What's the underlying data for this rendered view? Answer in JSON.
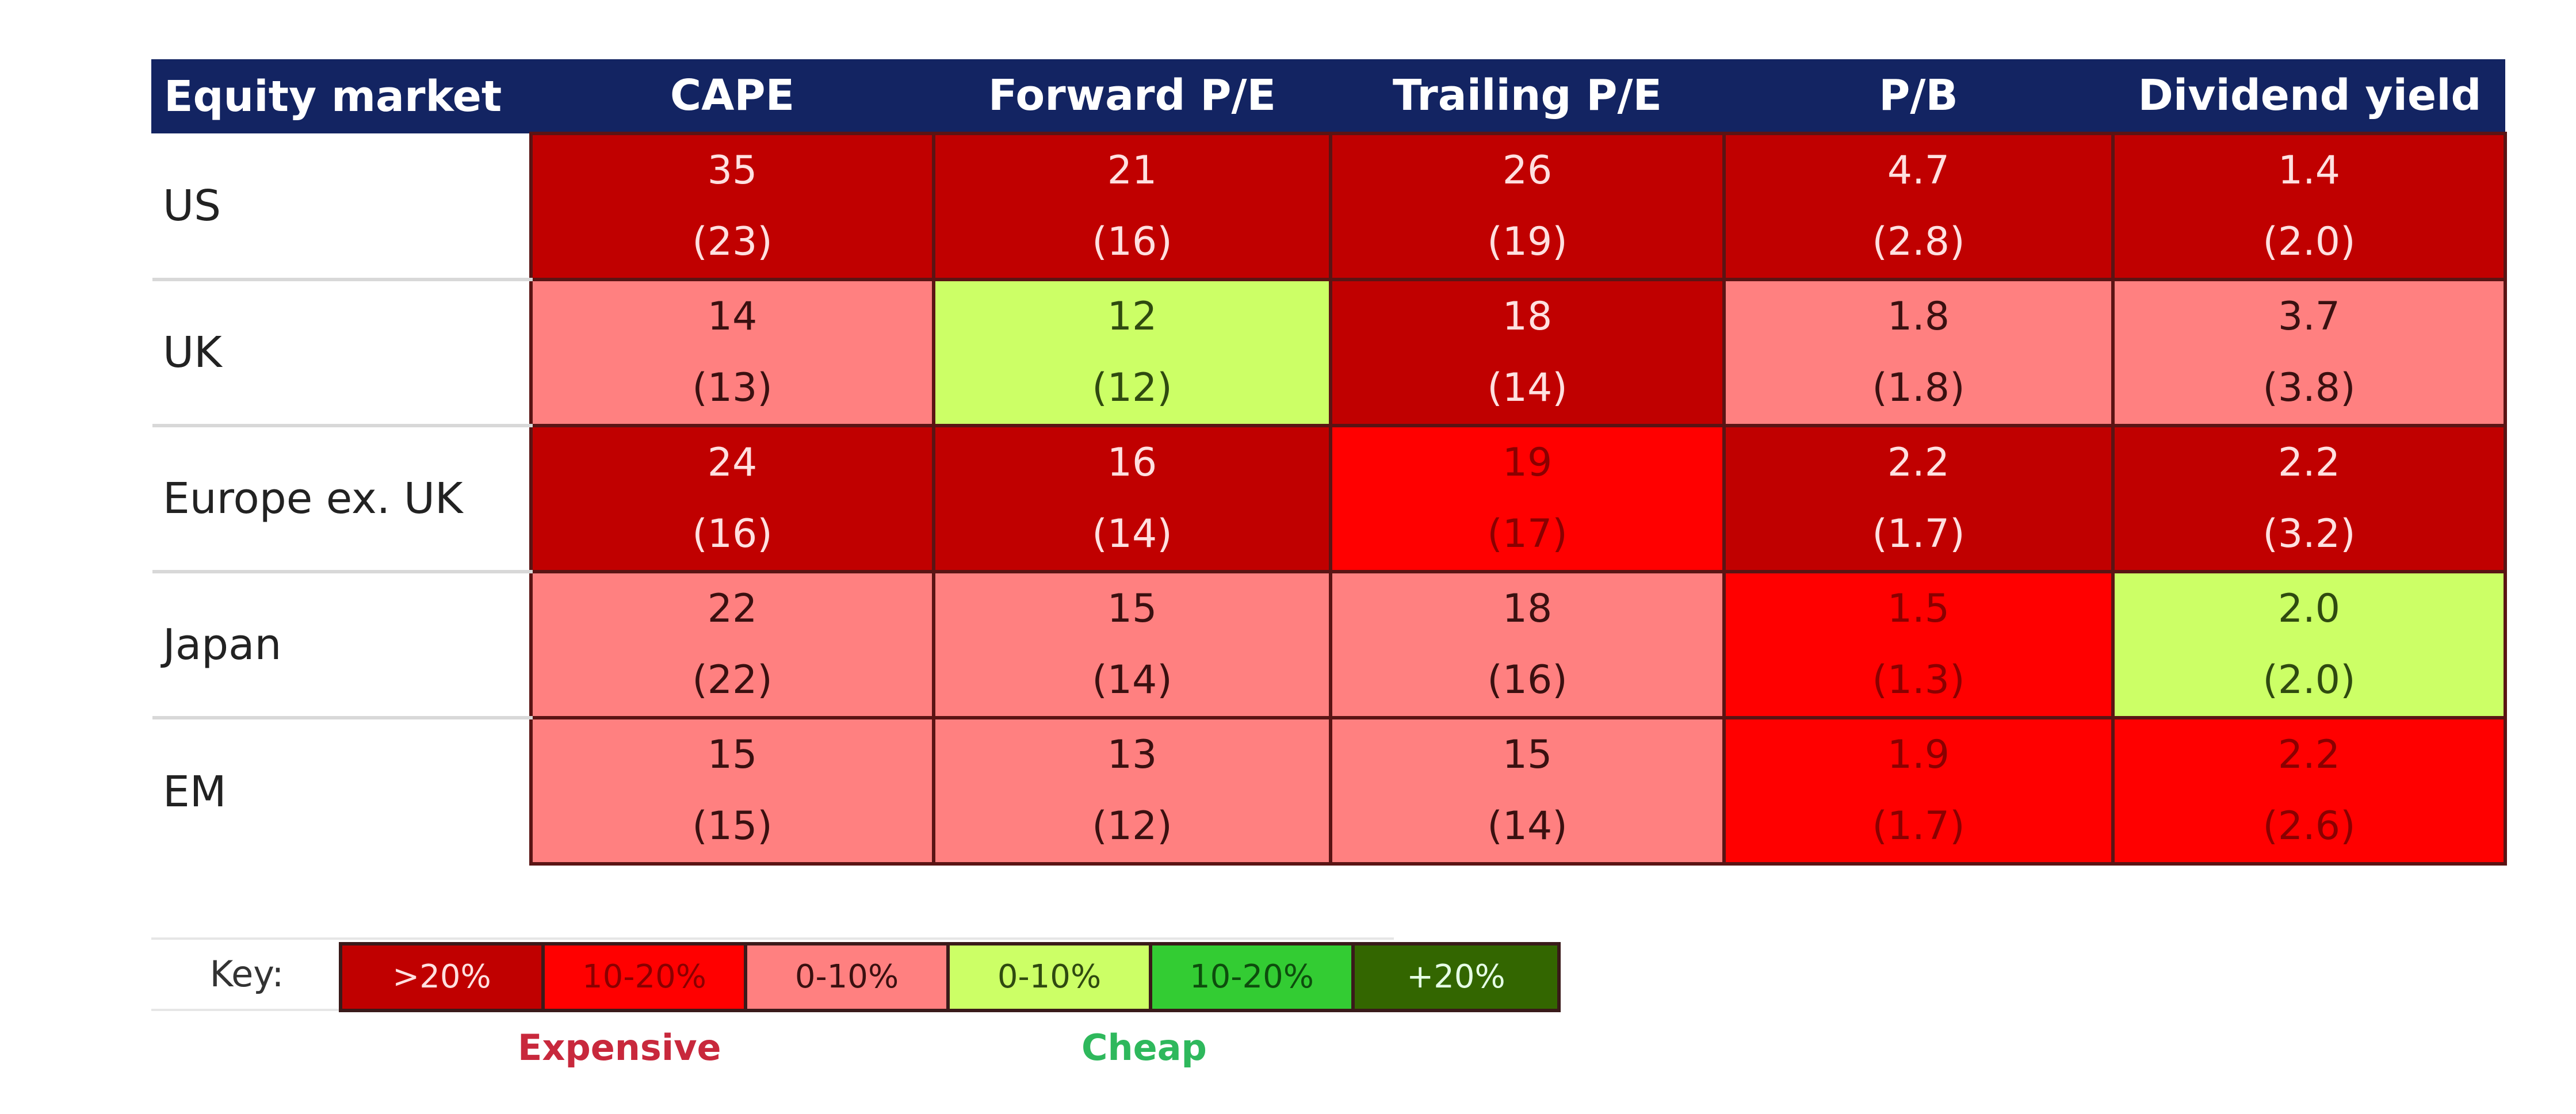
{
  "chart_data": {
    "type": "table",
    "title": "",
    "columns": [
      "Equity market",
      "CAPE",
      "Forward P/E",
      "Trailing P/E",
      "P/B",
      "Dividend yield"
    ],
    "rows": [
      {
        "market": "US",
        "cells": [
          {
            "value": "35",
            "average": "(23)",
            "band": ">20%"
          },
          {
            "value": "21",
            "average": "(16)",
            "band": ">20%"
          },
          {
            "value": "26",
            "average": "(19)",
            "band": ">20%"
          },
          {
            "value": "4.7",
            "average": "(2.8)",
            "band": ">20%"
          },
          {
            "value": "1.4",
            "average": "(2.0)",
            "band": ">20%"
          }
        ]
      },
      {
        "market": "UK",
        "cells": [
          {
            "value": "14",
            "average": "(13)",
            "band": "0-10% expensive"
          },
          {
            "value": "12",
            "average": "(12)",
            "band": "0-10% cheap"
          },
          {
            "value": "18",
            "average": "(14)",
            "band": ">20%"
          },
          {
            "value": "1.8",
            "average": "(1.8)",
            "band": "0-10% expensive"
          },
          {
            "value": "3.7",
            "average": "(3.8)",
            "band": "0-10% expensive"
          }
        ]
      },
      {
        "market": "Europe ex. UK",
        "cells": [
          {
            "value": "24",
            "average": "(16)",
            "band": ">20%"
          },
          {
            "value": "16",
            "average": "(14)",
            "band": ">20%"
          },
          {
            "value": "19",
            "average": "(17)",
            "band": "10-20% expensive"
          },
          {
            "value": "2.2",
            "average": "(1.7)",
            "band": ">20%"
          },
          {
            "value": "2.2",
            "average": "(3.2)",
            "band": ">20%"
          }
        ]
      },
      {
        "market": "Japan",
        "cells": [
          {
            "value": "22",
            "average": "(22)",
            "band": "0-10% expensive"
          },
          {
            "value": "15",
            "average": "(14)",
            "band": "0-10% expensive"
          },
          {
            "value": "18",
            "average": "(16)",
            "band": "0-10% expensive"
          },
          {
            "value": "1.5",
            "average": "(1.3)",
            "band": "10-20% expensive"
          },
          {
            "value": "2.0",
            "average": "(2.0)",
            "band": "0-10% cheap"
          }
        ]
      },
      {
        "market": "EM",
        "cells": [
          {
            "value": "15",
            "average": "(15)",
            "band": "0-10% expensive"
          },
          {
            "value": "13",
            "average": "(12)",
            "band": "0-10% expensive"
          },
          {
            "value": "15",
            "average": "(14)",
            "band": "0-10% expensive"
          },
          {
            "value": "1.9",
            "average": "(1.7)",
            "band": "10-20% expensive"
          },
          {
            "value": "2.2",
            "average": "(2.6)",
            "band": "10-20% expensive"
          }
        ]
      }
    ],
    "legend": {
      "label": "Key:",
      "items": [
        {
          "label": ">20%",
          "band": ">20%"
        },
        {
          "label": "10-20%",
          "band": "10-20% expensive"
        },
        {
          "label": "0-10%",
          "band": "0-10% expensive"
        },
        {
          "label": "0-10%",
          "band": "0-10% cheap"
        },
        {
          "label": "10-20%",
          "band": "10-20% cheap"
        },
        {
          "label": "+20%",
          "band": ">20% cheap"
        }
      ],
      "expensive_label": "Expensive",
      "cheap_label": "Cheap"
    },
    "band_styles": {
      ">20%": {
        "bg": "#c00000",
        "fg": "#ffe0e0"
      },
      "10-20% expensive": {
        "bg": "#ff0000",
        "fg": "#8a0000"
      },
      "0-10% expensive": {
        "bg": "#ff8080",
        "fg": "#3a1010"
      },
      "0-10% cheap": {
        "bg": "#ccff66",
        "fg": "#2f4a10"
      },
      "10-20% cheap": {
        "bg": "#33cc33",
        "fg": "#0d4d0d"
      },
      ">20% cheap": {
        "bg": "#336600",
        "fg": "#e6ffe6"
      }
    },
    "colors": {
      "header_bg": "#132462",
      "header_fg": "#ffffff",
      "expensive_label": "#c8283c",
      "cheap_label": "#2eb85c"
    }
  }
}
